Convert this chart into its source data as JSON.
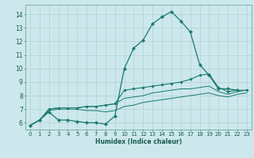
{
  "title": "",
  "xlabel": "Humidex (Indice chaleur)",
  "background_color": "#cce8ec",
  "grid_color": "#aacccc",
  "line_color": "#1a7a6e",
  "xlim": [
    -0.5,
    23.5
  ],
  "ylim": [
    5.5,
    14.7
  ],
  "xticks": [
    0,
    1,
    2,
    3,
    4,
    5,
    6,
    7,
    8,
    9,
    10,
    11,
    12,
    13,
    14,
    15,
    16,
    17,
    18,
    19,
    20,
    21,
    22,
    23
  ],
  "yticks": [
    6,
    7,
    8,
    9,
    10,
    11,
    12,
    13,
    14
  ],
  "line1_x": [
    0,
    1,
    2,
    3,
    4,
    5,
    6,
    7,
    8,
    9,
    10,
    11,
    12,
    13,
    14,
    15,
    16,
    17,
    18,
    19,
    20,
    21,
    22
  ],
  "line1_y": [
    5.8,
    6.2,
    6.8,
    6.2,
    6.2,
    6.1,
    6.0,
    6.0,
    5.9,
    6.5,
    10.0,
    11.5,
    12.1,
    13.3,
    13.8,
    14.2,
    13.5,
    12.7,
    10.3,
    9.5,
    8.5,
    8.5,
    8.4
  ],
  "line2_x": [
    0,
    1,
    2,
    3,
    4,
    5,
    6,
    7,
    8,
    9,
    10,
    11,
    12,
    13,
    14,
    15,
    16,
    17,
    18,
    19,
    20,
    21,
    22,
    23
  ],
  "line2_y": [
    5.8,
    6.2,
    7.0,
    7.1,
    7.1,
    7.1,
    7.2,
    7.2,
    7.3,
    7.4,
    8.4,
    8.5,
    8.6,
    8.7,
    8.8,
    8.9,
    9.0,
    9.2,
    9.5,
    9.6,
    8.6,
    8.3,
    8.4,
    8.4
  ],
  "line3_x": [
    0,
    1,
    2,
    3,
    4,
    5,
    6,
    7,
    8,
    9,
    10,
    11,
    12,
    13,
    14,
    15,
    16,
    17,
    18,
    19,
    20,
    21,
    22,
    23
  ],
  "line3_y": [
    5.8,
    6.2,
    7.0,
    7.1,
    7.1,
    7.1,
    7.2,
    7.2,
    7.3,
    7.4,
    7.8,
    7.9,
    8.0,
    8.2,
    8.3,
    8.4,
    8.5,
    8.5,
    8.6,
    8.7,
    8.3,
    8.1,
    8.3,
    8.4
  ],
  "line4_x": [
    0,
    1,
    2,
    3,
    4,
    5,
    6,
    7,
    8,
    9,
    10,
    11,
    12,
    13,
    14,
    15,
    16,
    17,
    18,
    19,
    20,
    21,
    22,
    23
  ],
  "line4_y": [
    5.8,
    6.2,
    6.9,
    7.0,
    7.0,
    7.0,
    6.9,
    6.9,
    6.8,
    6.9,
    7.2,
    7.3,
    7.5,
    7.6,
    7.7,
    7.8,
    7.9,
    8.0,
    8.1,
    8.2,
    8.0,
    7.9,
    8.1,
    8.2
  ],
  "xlabel_fontsize": 5.5,
  "tick_fontsize": 5.0,
  "ylabel_fontsize": 5.5
}
